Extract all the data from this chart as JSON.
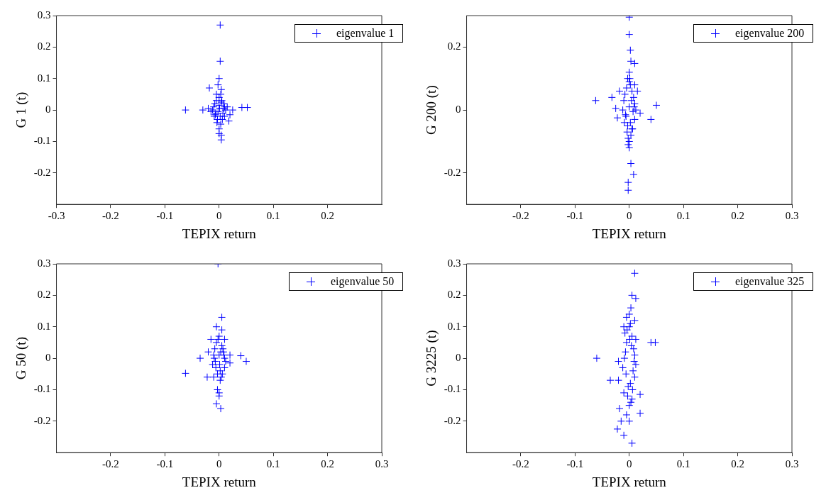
{
  "chart_data": [
    {
      "type": "scatter",
      "xlabel": "TEPIX return",
      "ylabel": "G 1 (t)",
      "xlim": [
        -0.3,
        0.3
      ],
      "ylim": [
        -0.3,
        0.3
      ],
      "xticks": [
        -0.3,
        -0.2,
        -0.1,
        0,
        0.1,
        0.2
      ],
      "yticks": [
        -0.2,
        -0.1,
        0,
        0.1,
        0.2,
        0.3
      ],
      "legend": "top right",
      "marker": "cross",
      "grid": false,
      "series": [
        {
          "name": "eigenvalue 1",
          "color": "#0000ff",
          "x": [
            0.002,
            0.002,
            0,
            -0.002,
            -0.018,
            0.004,
            -0.005,
            0.003,
            -0.062,
            -0.03,
            0.042,
            0.052,
            0.02,
            0.018,
            -0.004,
            0,
            0,
            0.004,
            0.004,
            -0.02,
            -0.015,
            0.015,
            0.025,
            -0.01,
            -0.008,
            -0.005,
            0,
            0.005,
            0.008,
            0.01,
            0.012,
            -0.012,
            -0.006,
            0.002,
            0.006,
            0.01,
            -0.003,
            0.003,
            0,
            -0.007,
            0.007,
            0.001,
            -0.002,
            0.004,
            0.009,
            -0.009
          ],
          "values": [
            0.27,
            0.155,
            0.1,
            0.08,
            0.07,
            0.065,
            0.05,
            0.05,
            0,
            0,
            0.008,
            0.008,
            -0.015,
            -0.035,
            -0.04,
            -0.06,
            -0.075,
            -0.08,
            -0.095,
            0.005,
            -0.005,
            0.01,
            0,
            0.01,
            0.02,
            0.03,
            0.04,
            0.03,
            0.02,
            0.01,
            0,
            0,
            -0.01,
            -0.02,
            -0.03,
            -0.02,
            -0.03,
            -0.045,
            0.015,
            -0.015,
            -0.01,
            0.005,
            -0.005,
            0.025,
            0.005,
            -0.02
          ]
        }
      ]
    },
    {
      "type": "scatter",
      "xlabel": "TEPIX return",
      "ylabel": "G 200 (t)",
      "xlim": [
        -0.3,
        0.3
      ],
      "ylim": [
        -0.3,
        0.3
      ],
      "xticks": [
        -0.2,
        -0.1,
        0,
        0.1,
        0.2,
        0.3
      ],
      "yticks": [
        -0.2,
        0,
        0.2
      ],
      "legend": "top right",
      "marker": "cross",
      "grid": false,
      "series": [
        {
          "name": "eigenvalue 200",
          "color": "#0000ff",
          "x": [
            0,
            0,
            0.002,
            0.003,
            0.01,
            0,
            -0.003,
            -0.018,
            -0.032,
            -0.062,
            0.05,
            0.04,
            -0.022,
            0.003,
            0.008,
            -0.002,
            -0.002,
            0,
            -0.002,
            0.015,
            0.01,
            0.02,
            -0.025,
            -0.01,
            -0.008,
            -0.005,
            0,
            0.005,
            0.008,
            0.01,
            0.012,
            -0.012,
            -0.006,
            0.002,
            0.006,
            0.01,
            -0.003,
            0.003,
            0,
            -0.007,
            0.007,
            0.001,
            -0.002,
            0.004,
            0.009,
            -0.009,
            0,
            0.002,
            -0.004,
            0.005
          ],
          "values": [
            0.295,
            0.24,
            0.19,
            0.155,
            0.148,
            0.12,
            0.1,
            0.06,
            0.04,
            0.03,
            0.015,
            -0.03,
            -0.025,
            -0.17,
            -0.205,
            -0.23,
            -0.255,
            -0.12,
            -0.11,
            0.06,
            0.08,
            -0.01,
            0.005,
            0.03,
            0.05,
            0.07,
            0.09,
            0.06,
            0.04,
            0.02,
            0,
            0,
            -0.02,
            -0.04,
            -0.06,
            -0.03,
            -0.05,
            -0.08,
            0.01,
            -0.015,
            -0.005,
            0.1,
            -0.09,
            0.03,
            0.01,
            -0.04,
            -0.1,
            0.08,
            -0.07,
            -0.06
          ]
        }
      ]
    },
    {
      "type": "scatter",
      "xlabel": "TEPIX return",
      "ylabel": "G 50 (t)",
      "xlim": [
        -0.3,
        0.3
      ],
      "ylim": [
        -0.3,
        0.3
      ],
      "xticks": [
        -0.2,
        -0.1,
        0,
        0.1,
        0.2,
        0.3
      ],
      "yticks": [
        -0.2,
        -0.1,
        0,
        0.1,
        0.2,
        0.3
      ],
      "legend": "top right",
      "marker": "cross",
      "grid": false,
      "series": [
        {
          "name": "eigenvalue 50",
          "color": "#0000ff",
          "x": [
            -0.002,
            0.005,
            -0.005,
            0.005,
            -0.015,
            0.01,
            0.04,
            0.05,
            -0.035,
            -0.062,
            -0.022,
            -0.01,
            -0.003,
            0,
            0,
            -0.005,
            0.003,
            0.02,
            0.02,
            -0.02,
            -0.01,
            -0.008,
            -0.005,
            0,
            0.005,
            0.008,
            0.01,
            0.012,
            -0.012,
            -0.006,
            0.002,
            0.006,
            0.01,
            -0.003,
            0.003,
            0,
            -0.007,
            0.007,
            0.001,
            -0.002,
            0.004,
            0.009,
            -0.009,
            0.002
          ],
          "values": [
            0.3,
            0.13,
            0.1,
            0.09,
            0.06,
            0.06,
            0.008,
            -0.01,
            0,
            -0.048,
            -0.06,
            -0.06,
            -0.1,
            -0.11,
            -0.12,
            -0.145,
            -0.16,
            -0.015,
            0.01,
            0.02,
            0.01,
            0.03,
            0.05,
            0.07,
            0.04,
            0.02,
            0,
            -0.01,
            -0.02,
            -0.03,
            -0.04,
            -0.05,
            -0.03,
            -0.05,
            0.02,
            0.01,
            -0.01,
            0.03,
            -0.02,
            0.06,
            -0.06,
            0.01,
            0,
            -0.07
          ]
        }
      ]
    },
    {
      "type": "scatter",
      "xlabel": "TEPIX return",
      "ylabel": "G 3225 (t)",
      "xlim": [
        -0.3,
        0.3
      ],
      "ylim": [
        -0.3,
        0.3
      ],
      "xticks": [
        -0.2,
        -0.1,
        0,
        0.1,
        0.2,
        0.3
      ],
      "yticks": [
        -0.2,
        -0.1,
        0,
        0.1,
        0.2,
        0.3
      ],
      "legend": "top right",
      "marker": "cross",
      "grid": false,
      "series": [
        {
          "name": "eigenvalue 325",
          "color": "#0000ff",
          "x": [
            0.01,
            0.005,
            0.012,
            0.003,
            -0.005,
            0.01,
            0.04,
            0.048,
            -0.06,
            -0.02,
            -0.035,
            -0.02,
            0.02,
            0.02,
            -0.018,
            -0.015,
            0,
            -0.022,
            -0.01,
            0.005,
            -0.005,
            -0.01,
            -0.008,
            -0.005,
            0,
            0.005,
            0.008,
            0.01,
            0.012,
            -0.012,
            -0.006,
            0.002,
            0.006,
            0.01,
            -0.003,
            0.003,
            0,
            -0.007,
            0.007,
            0.001,
            -0.002,
            0.004,
            0.009,
            -0.009,
            0,
            0.002,
            -0.004,
            0.005,
            0.012,
            -0.01
          ],
          "values": [
            0.27,
            0.2,
            0.19,
            0.16,
            0.13,
            0.12,
            0.05,
            0.05,
            0,
            -0.01,
            -0.07,
            -0.07,
            -0.115,
            -0.175,
            -0.16,
            -0.2,
            -0.2,
            -0.225,
            -0.245,
            -0.27,
            -0.18,
            0.1,
            0.08,
            0.05,
            0.1,
            0.07,
            0.03,
            0.01,
            -0.02,
            -0.03,
            -0.05,
            -0.08,
            -0.1,
            -0.06,
            -0.12,
            -0.14,
            0.14,
            0.02,
            -0.04,
            0.06,
            -0.09,
            0.04,
            -0.01,
            0.0,
            -0.15,
            0.11,
            0.09,
            -0.13,
            0.06,
            -0.11
          ]
        }
      ]
    }
  ]
}
